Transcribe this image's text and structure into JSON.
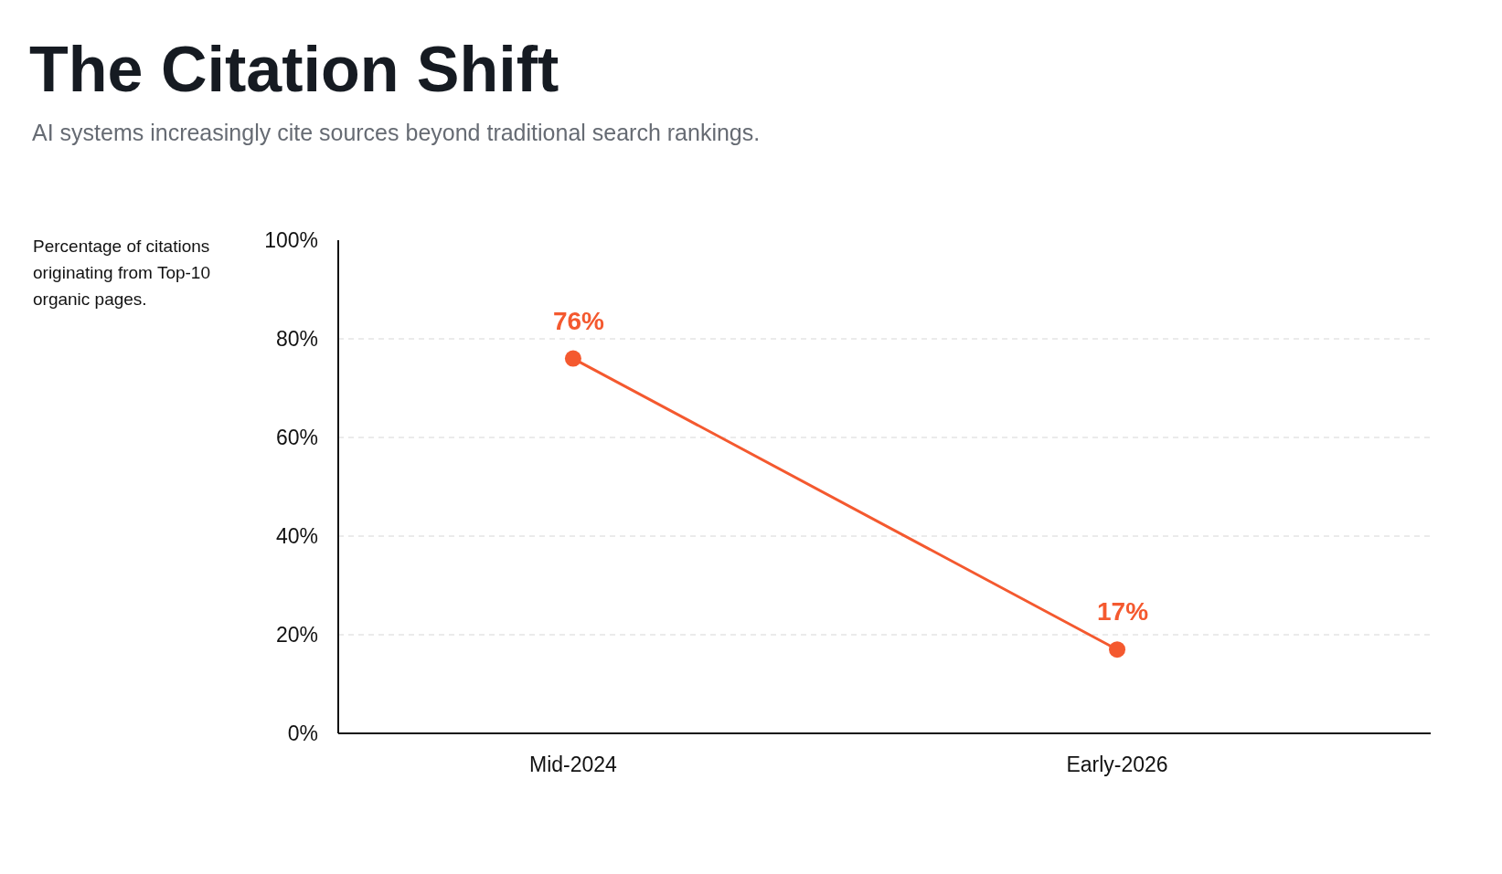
{
  "chart_data": {
    "type": "line",
    "title": "The Citation Shift",
    "subtitle": "AI systems increasingly cite sources beyond traditional search rankings.",
    "ylabel": "Percentage of citations originating from Top-10 organic pages.",
    "categories": [
      "Mid-2024",
      "Early-2026"
    ],
    "series": [
      {
        "color": "#f4592f",
        "values": [
          76,
          17
        ],
        "value_labels": [
          "76%",
          "17%"
        ]
      }
    ],
    "ylim": [
      0,
      100
    ],
    "yticks": [
      {
        "value": 0,
        "label": "0%"
      },
      {
        "value": 20,
        "label": "20%"
      },
      {
        "value": 40,
        "label": "40%"
      },
      {
        "value": 60,
        "label": "60%"
      },
      {
        "value": 80,
        "label": "80%"
      },
      {
        "value": 100,
        "label": "100%"
      }
    ],
    "grid": "y",
    "marker": "circle",
    "line_style": "solid"
  }
}
